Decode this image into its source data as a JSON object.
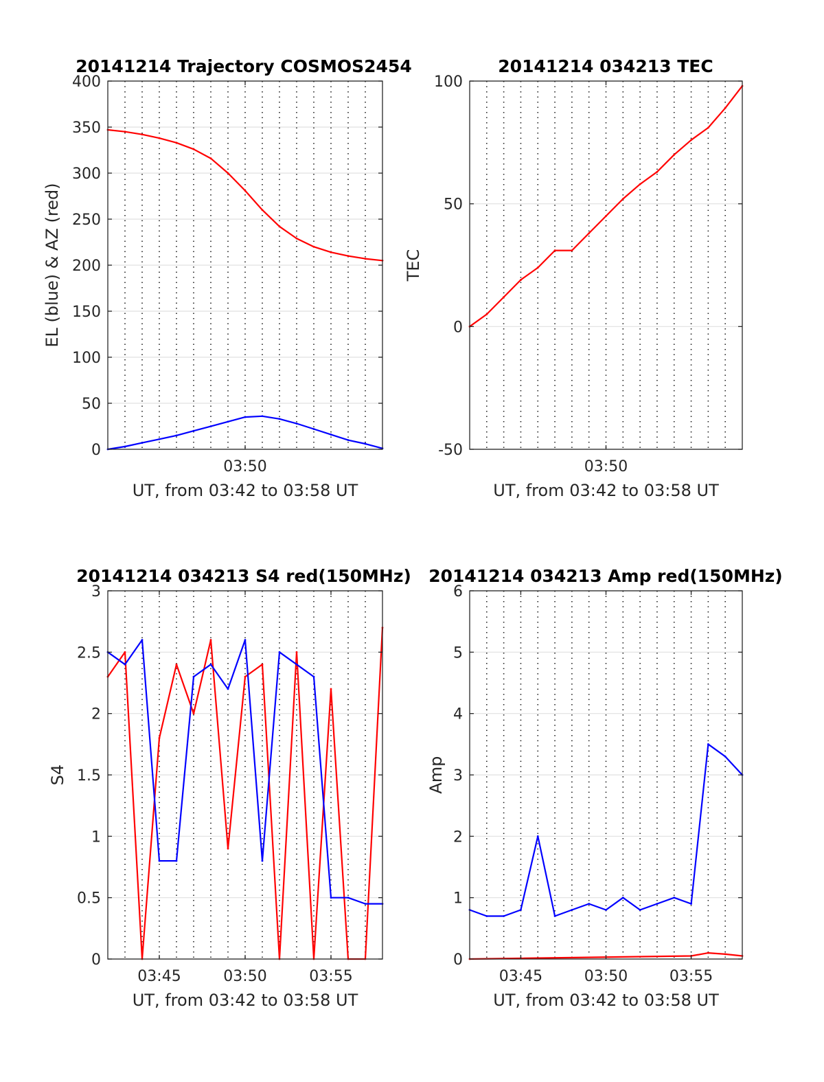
{
  "chart_data": [
    {
      "type": "line",
      "title": "20141214 Trajectory COSMOS2454",
      "xlabel": "UT, from 03:42 to 03:58 UT",
      "ylabel": "EL (blue) & AZ (red)",
      "xlim": [
        "03:42",
        "03:58"
      ],
      "ylim": [
        0,
        400
      ],
      "x_ticks": [
        "03:50"
      ],
      "y_ticks": [
        0,
        50,
        100,
        150,
        200,
        250,
        300,
        350,
        400
      ],
      "grid": "x dotted each minute, y solid",
      "series": [
        {
          "color": "#ff0000",
          "x": [
            "03:42",
            "03:43",
            "03:44",
            "03:45",
            "03:46",
            "03:47",
            "03:48",
            "03:49",
            "03:50",
            "03:51",
            "03:52",
            "03:53",
            "03:54",
            "03:55",
            "03:56",
            "03:57",
            "03:58"
          ],
          "values": [
            347,
            345,
            342,
            338,
            333,
            326,
            316,
            300,
            281,
            260,
            242,
            229,
            220,
            214,
            210,
            207,
            205
          ]
        },
        {
          "color": "#0000ff",
          "x": [
            "03:42",
            "03:43",
            "03:44",
            "03:45",
            "03:46",
            "03:47",
            "03:48",
            "03:49",
            "03:50",
            "03:51",
            "03:52",
            "03:53",
            "03:54",
            "03:55",
            "03:56",
            "03:57",
            "03:58"
          ],
          "values": [
            0,
            3,
            7,
            11,
            15,
            20,
            25,
            30,
            35,
            36,
            33,
            28,
            22,
            16,
            10,
            6,
            1
          ]
        }
      ]
    },
    {
      "type": "line",
      "title": "20141214 034213 TEC",
      "xlabel": "UT, from 03:42 to 03:58 UT",
      "ylabel": "TEC",
      "xlim": [
        "03:42",
        "03:58"
      ],
      "ylim": [
        -50,
        100
      ],
      "x_ticks": [
        "03:50"
      ],
      "y_ticks": [
        -50,
        0,
        50,
        100
      ],
      "grid": "x dotted each minute, y solid",
      "series": [
        {
          "color": "#ff0000",
          "x": [
            "03:42",
            "03:43",
            "03:44",
            "03:45",
            "03:46",
            "03:47",
            "03:48",
            "03:49",
            "03:50",
            "03:51",
            "03:52",
            "03:53",
            "03:54",
            "03:55",
            "03:56",
            "03:57",
            "03:58"
          ],
          "values": [
            0,
            5,
            12,
            19,
            24,
            31,
            31,
            38,
            45,
            52,
            58,
            63,
            70,
            76,
            81,
            89,
            98
          ]
        }
      ]
    },
    {
      "type": "line",
      "title": "20141214 034213 S4 red(150MHz)",
      "xlabel": "UT, from 03:42 to 03:58 UT",
      "ylabel": "S4",
      "xlim": [
        "03:42",
        "03:58"
      ],
      "ylim": [
        0,
        3
      ],
      "x_ticks": [
        "03:45",
        "03:50",
        "03:55"
      ],
      "y_ticks": [
        0,
        0.5,
        1,
        1.5,
        2,
        2.5,
        3
      ],
      "grid": "x dotted each minute, y solid",
      "series": [
        {
          "color": "#ff0000",
          "x": [
            "03:42",
            "03:43",
            "03:44",
            "03:45",
            "03:46",
            "03:47",
            "03:48",
            "03:49",
            "03:50",
            "03:51",
            "03:52",
            "03:53",
            "03:54",
            "03:55",
            "03:56",
            "03:57",
            "03:58"
          ],
          "values": [
            2.3,
            2.5,
            0.0,
            1.8,
            2.4,
            2.0,
            2.6,
            0.9,
            2.3,
            2.4,
            0.0,
            2.5,
            0.0,
            2.2,
            0.0,
            0.0,
            2.7
          ]
        },
        {
          "color": "#0000ff",
          "x": [
            "03:42",
            "03:43",
            "03:44",
            "03:45",
            "03:46",
            "03:47",
            "03:48",
            "03:49",
            "03:50",
            "03:51",
            "03:52",
            "03:53",
            "03:54",
            "03:55",
            "03:56",
            "03:57",
            "03:58"
          ],
          "values": [
            2.5,
            2.4,
            2.6,
            0.8,
            0.8,
            2.3,
            2.4,
            2.2,
            2.6,
            0.8,
            2.5,
            2.4,
            2.3,
            0.5,
            0.5,
            0.45,
            0.45
          ]
        }
      ]
    },
    {
      "type": "line",
      "title": "20141214 034213 Amp red(150MHz)",
      "xlabel": "UT, from 03:42 to 03:58 UT",
      "ylabel": "Amp",
      "xlim": [
        "03:42",
        "03:58"
      ],
      "ylim": [
        0,
        6
      ],
      "x_ticks": [
        "03:45",
        "03:50",
        "03:55"
      ],
      "y_ticks": [
        0,
        1,
        2,
        3,
        4,
        5,
        6
      ],
      "grid": "x dotted each minute, y solid",
      "series": [
        {
          "color": "#ff0000",
          "x": [
            "03:42",
            "03:55",
            "03:56",
            "03:57",
            "03:58"
          ],
          "values": [
            0.0,
            0.05,
            0.1,
            0.08,
            0.05
          ]
        },
        {
          "color": "#0000ff",
          "x": [
            "03:42",
            "03:43",
            "03:44",
            "03:45",
            "03:46",
            "03:47",
            "03:48",
            "03:49",
            "03:50",
            "03:51",
            "03:52",
            "03:53",
            "03:54",
            "03:55",
            "03:56",
            "03:57",
            "03:58"
          ],
          "values": [
            0.8,
            0.7,
            0.7,
            0.8,
            2.0,
            0.7,
            0.8,
            0.9,
            0.8,
            1.0,
            0.8,
            0.9,
            1.0,
            0.9,
            3.5,
            3.3,
            3.0
          ]
        }
      ]
    }
  ]
}
